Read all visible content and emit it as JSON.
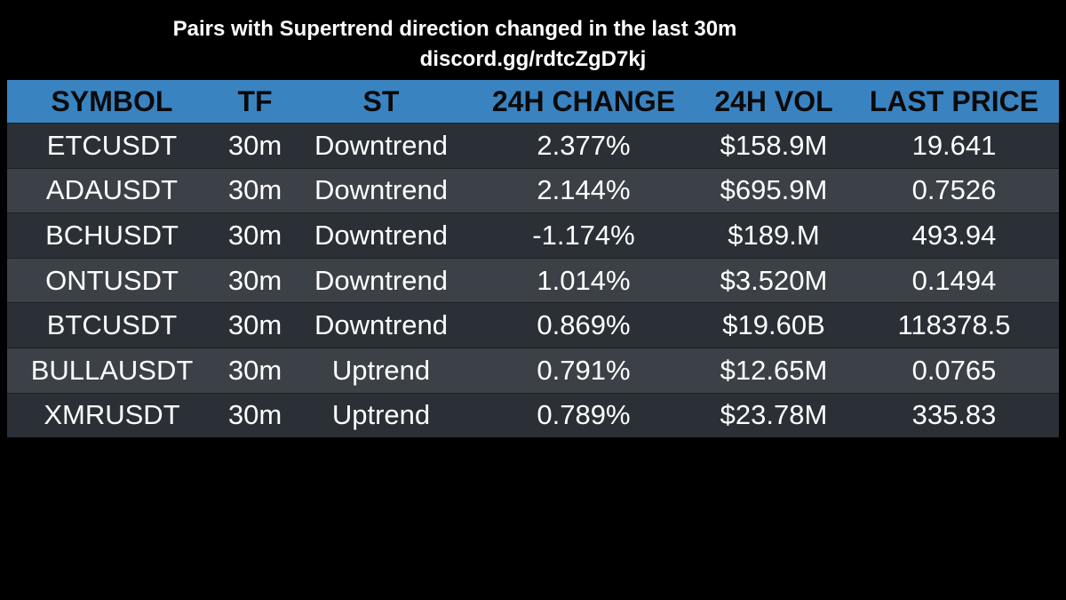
{
  "header": {
    "title": "Pairs with Supertrend direction changed in the last 30m",
    "subtitle": "discord.gg/rdtcZgD7kj"
  },
  "table": {
    "columns": [
      "SYMBOL",
      "TF",
      "ST",
      "24H CHANGE",
      "24H VOL",
      "LAST PRICE"
    ],
    "rows": [
      [
        "ETCUSDT",
        "30m",
        "Downtrend",
        "2.377%",
        "$158.9M",
        "19.641"
      ],
      [
        "ADAUSDT",
        "30m",
        "Downtrend",
        "2.144%",
        "$695.9M",
        "0.7526"
      ],
      [
        "BCHUSDT",
        "30m",
        "Downtrend",
        "-1.174%",
        "$189.M",
        "493.94"
      ],
      [
        "ONTUSDT",
        "30m",
        "Downtrend",
        "1.014%",
        "$3.520M",
        "0.1494"
      ],
      [
        "BTCUSDT",
        "30m",
        "Downtrend",
        "0.869%",
        "$19.60B",
        "118378.5"
      ],
      [
        "BULLAUSDT",
        "30m",
        "Uptrend",
        "0.791%",
        "$12.65M",
        "0.0765"
      ],
      [
        "XMRUSDT",
        "30m",
        "Uptrend",
        "0.789%",
        "$23.78M",
        "335.83"
      ]
    ]
  },
  "colors": {
    "background": "#000000",
    "header_bg": "#3a83c1",
    "row_dark": "#2a3035",
    "row_light": "#3b4146",
    "text": "#ffffff"
  }
}
